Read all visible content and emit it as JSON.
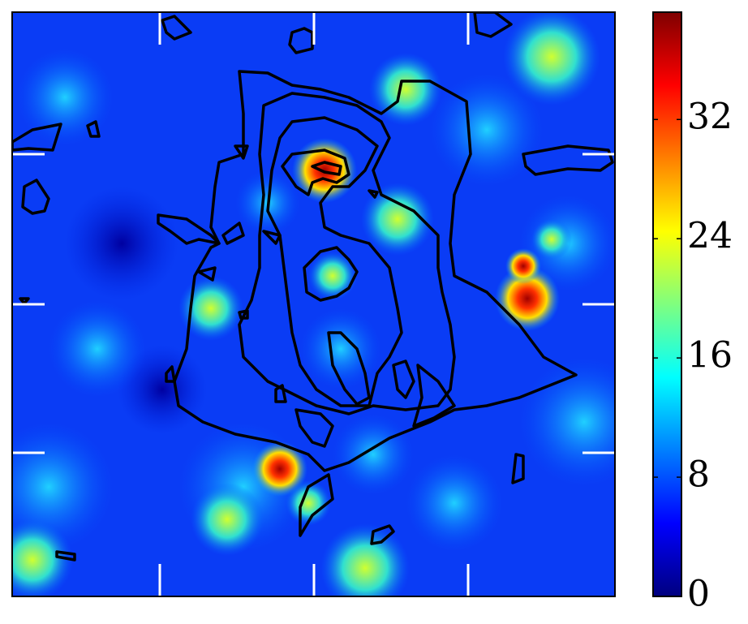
{
  "chart_data": {
    "type": "heatmap",
    "colormap": [
      "#00007f",
      "#0000ff",
      "#007fff",
      "#00ffff",
      "#7fff7f",
      "#ffff00",
      "#ff7f00",
      "#ff0000",
      "#7f0000"
    ],
    "clim": [
      0,
      39.2
    ],
    "cticks": [
      0,
      8,
      16,
      24,
      32
    ]
  }
}
